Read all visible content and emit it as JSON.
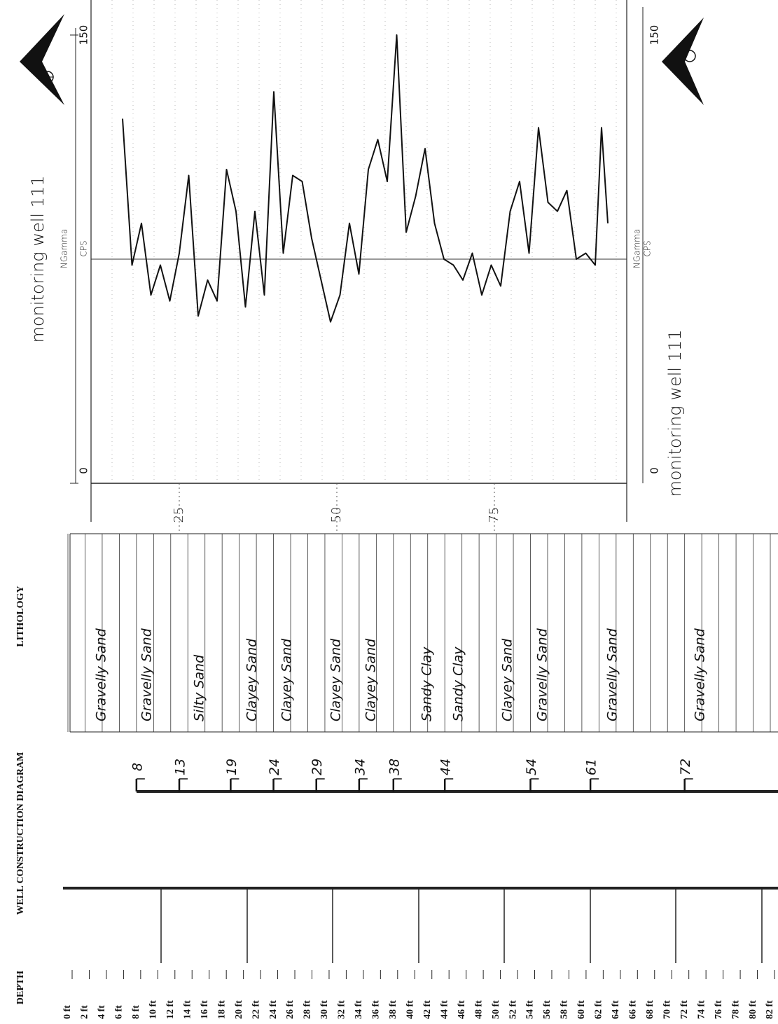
{
  "chart_data": {
    "type": "line",
    "title": "monitoring well 111",
    "y_label": "NGamma",
    "y_unit": "CPS",
    "x": [
      16,
      17.5,
      19,
      20.5,
      22,
      23.5,
      25,
      26.5,
      28,
      29.5,
      31,
      32.5,
      34,
      35.5,
      37,
      38.5,
      40,
      41.5,
      43,
      44.5,
      46,
      47.5,
      49,
      50.5,
      52,
      53.5,
      55,
      56.5,
      58,
      59.5,
      61,
      62.5,
      64,
      65.5,
      67,
      68.5,
      70,
      71.5,
      73,
      74.5,
      76,
      77.5,
      79,
      80.5,
      82,
      83.5,
      85,
      86.5,
      88,
      89.5,
      91,
      92,
      93
    ],
    "values": [
      122,
      73,
      87,
      63,
      73,
      61,
      77,
      103,
      56,
      68,
      61,
      105,
      91,
      59,
      91,
      63,
      131,
      77,
      103,
      101,
      82,
      68,
      54,
      63,
      87,
      70,
      105,
      115,
      101,
      150,
      84,
      96,
      112,
      87,
      75,
      73,
      68,
      77,
      63,
      73,
      66,
      91,
      101,
      77,
      119,
      94,
      91,
      98,
      75,
      77,
      73,
      119,
      87
    ],
    "color": "#111111",
    "xlim": [
      11,
      96
    ],
    "xticks": [
      25,
      50,
      75
    ],
    "ylim": [
      0,
      150
    ],
    "yticks": [
      0,
      150
    ],
    "grid": true
  },
  "columns": {
    "depth": "DEPTH",
    "well": "WELL CONSTRUCTION DIAGRAM",
    "lithology": "LITHOLOGY"
  },
  "depth_labels": [
    "0 ft",
    "2 ft",
    "4 ft",
    "6 ft",
    "8 ft",
    "10 ft",
    "12 ft",
    "14 ft",
    "16 ft",
    "18 ft",
    "20 ft",
    "22 ft",
    "24 ft",
    "26 ft",
    "28 ft",
    "30 ft",
    "32 ft",
    "34 ft",
    "36 ft",
    "38 ft",
    "40 ft",
    "42 ft",
    "44 ft",
    "46 ft",
    "48 ft",
    "50 ft",
    "52 ft",
    "54 ft",
    "56 ft",
    "58 ft",
    "60 ft",
    "62 ft",
    "64 ft",
    "66 ft",
    "68 ft",
    "70 ft",
    "72 ft",
    "74 ft",
    "76 ft",
    "78 ft",
    "80 ft",
    "82 ft"
  ],
  "well_marks": [
    8,
    13,
    19,
    24,
    29,
    34,
    38,
    44,
    54,
    61,
    72
  ],
  "lithology": [
    "Gravelly Sand",
    "Gravelly Sand",
    "Silty Sand",
    "Clayey Sand",
    "Clayey Sand",
    "Clayey Sand",
    "Clayey Sand",
    "Sandy Clay",
    "Sandy Clay",
    "Clayey Sand",
    "Gravelly Sand",
    "Gravelly Sand",
    "Gravelly Sand"
  ]
}
